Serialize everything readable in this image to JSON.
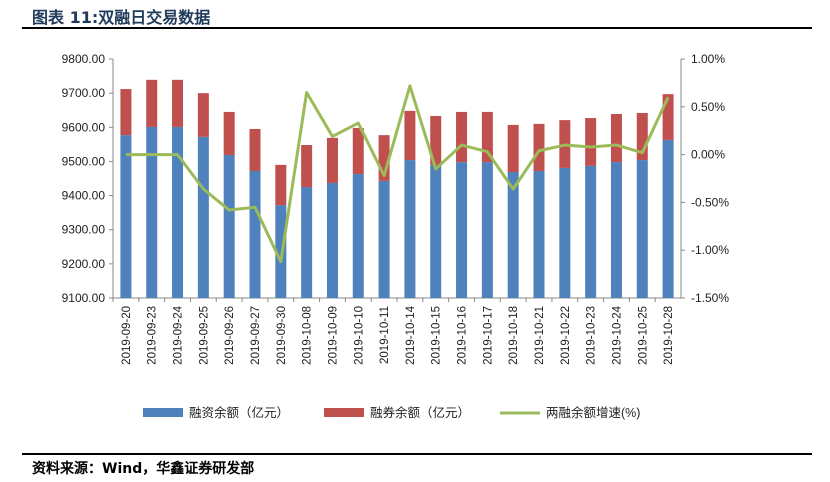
{
  "header": {
    "title": "图表 11:双融日交易数据"
  },
  "footer": {
    "source": "资料来源：Wind，华鑫证券研发部"
  },
  "chart_data": {
    "type": "bar",
    "stacked": true,
    "categories": [
      "2019-09-20",
      "2019-09-23",
      "2019-09-24",
      "2019-09-25",
      "2019-09-26",
      "2019-09-27",
      "2019-09-30",
      "2019-10-08",
      "2019-10-09",
      "2019-10-10",
      "2019-10-11",
      "2019-10-14",
      "2019-10-15",
      "2019-10-16",
      "2019-10-17",
      "2019-10-18",
      "2019-10-21",
      "2019-10-22",
      "2019-10-23",
      "2019-10-24",
      "2019-10-25",
      "2019-10-28"
    ],
    "series": [
      {
        "name": "融资余额（亿元）",
        "type": "bar",
        "axis": "left",
        "color": "#4f81bd",
        "values": [
          9577,
          9601,
          9601,
          9572,
          9519,
          9472,
          9372,
          9425,
          9437,
          9463,
          9443,
          9504,
          9490,
          9498,
          9498,
          9469,
          9472,
          9481,
          9487,
          9498,
          9504,
          9563
        ]
      },
      {
        "name": "融券余额（亿元）",
        "type": "bar",
        "axis": "left",
        "color": "#c0504d",
        "values_stack_top": [
          9712,
          9739,
          9739,
          9700,
          9645,
          9595,
          9490,
          9548,
          9569,
          9598,
          9577,
          9648,
          9633,
          9645,
          9645,
          9607,
          9610,
          9621,
          9627,
          9639,
          9642,
          9697
        ]
      },
      {
        "name": "两融余额增速(%)",
        "type": "line",
        "axis": "right",
        "color": "#9bbb59",
        "values": [
          0.0,
          0.0,
          0.0,
          -0.36,
          -0.58,
          -0.55,
          -1.12,
          0.65,
          0.19,
          0.33,
          -0.22,
          0.72,
          -0.15,
          0.1,
          0.03,
          -0.36,
          0.04,
          0.1,
          0.08,
          0.1,
          0.02,
          0.6
        ]
      }
    ],
    "y_left": {
      "ylim": [
        9100,
        9800
      ],
      "ticks": [
        "9800.00",
        "9700.00",
        "9600.00",
        "9500.00",
        "9400.00",
        "9300.00",
        "9200.00",
        "9100.00"
      ]
    },
    "y_right": {
      "ylim": [
        -1.5,
        1.0
      ],
      "ticks": [
        "1.00%",
        "0.50%",
        "0.00%",
        "-0.50%",
        "-1.00%",
        "-1.50%"
      ]
    },
    "legend": "bottom",
    "grid": false
  }
}
